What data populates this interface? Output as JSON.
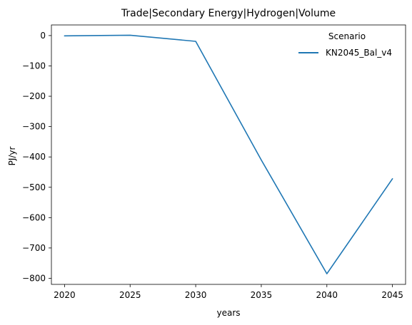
{
  "chart_data": {
    "type": "line",
    "title": "Trade|Secondary Energy|Hydrogen|Volume",
    "xlabel": "years",
    "ylabel": "PJ/yr",
    "x": [
      2020,
      2025,
      2030,
      2035,
      2040,
      2045
    ],
    "series": [
      {
        "name": "KN2045_Bal_v4",
        "color": "#1f77b4",
        "values": [
          -1,
          1,
          -19,
          -410,
          -785,
          -472
        ]
      }
    ],
    "xlim": [
      2019,
      2046
    ],
    "ylim": [
      -820,
      35
    ],
    "xticks": [
      2020,
      2025,
      2030,
      2035,
      2040,
      2045
    ],
    "yticks": [
      0,
      -100,
      -200,
      -300,
      -400,
      -500,
      -600,
      -700,
      -800
    ],
    "grid": false,
    "legend": {
      "title": "Scenario",
      "placement": "top-right",
      "frame": false
    }
  }
}
